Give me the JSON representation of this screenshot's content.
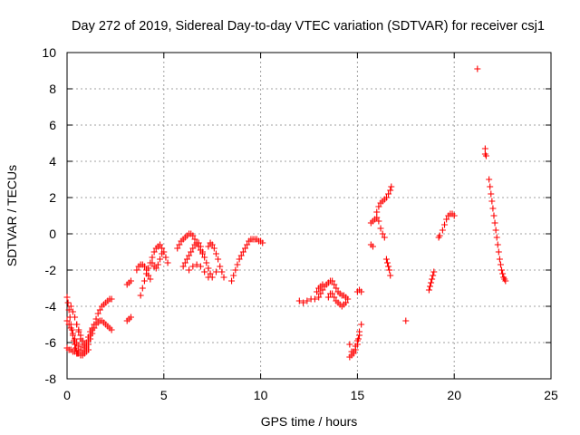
{
  "chart_data": {
    "type": "scatter",
    "title": "Day 272 of 2019, Sidereal Day-to-day VTEC variation (SDTVAR) for receiver csj1",
    "xlabel": "GPS time / hours",
    "ylabel": "SDTVAR / TECUs",
    "xlim": [
      0,
      25
    ],
    "ylim": [
      -8,
      10
    ],
    "x_ticks": [
      0,
      5,
      10,
      15,
      20,
      25
    ],
    "y_ticks": [
      -8,
      -6,
      -4,
      -2,
      0,
      2,
      4,
      6,
      8,
      10
    ],
    "grid": true,
    "marker": "+",
    "color": "#ff0000",
    "series": [
      {
        "name": "SDTVAR",
        "points": [
          [
            0.0,
            -3.5
          ],
          [
            0.05,
            -3.8
          ],
          [
            0.1,
            -4.2
          ],
          [
            0.15,
            -4.6
          ],
          [
            0.2,
            -5.0
          ],
          [
            0.25,
            -5.3
          ],
          [
            0.3,
            -5.6
          ],
          [
            0.35,
            -5.9
          ],
          [
            0.4,
            -6.1
          ],
          [
            0.45,
            -6.3
          ],
          [
            0.5,
            -6.5
          ],
          [
            0.55,
            -6.6
          ],
          [
            0.6,
            -6.6
          ],
          [
            0.7,
            -6.7
          ],
          [
            0.8,
            -6.7
          ],
          [
            0.9,
            -6.6
          ],
          [
            1.0,
            -6.5
          ],
          [
            1.1,
            -6.4
          ],
          [
            0.0,
            -4.8
          ],
          [
            0.1,
            -5.0
          ],
          [
            0.2,
            -5.2
          ],
          [
            0.3,
            -5.5
          ],
          [
            0.4,
            -5.8
          ],
          [
            0.5,
            -6.0
          ],
          [
            0.6,
            -6.2
          ],
          [
            0.7,
            -6.4
          ],
          [
            0.8,
            -6.6
          ],
          [
            0.9,
            -6.5
          ],
          [
            1.0,
            -6.2
          ],
          [
            1.1,
            -5.9
          ],
          [
            1.2,
            -5.6
          ],
          [
            1.3,
            -5.3
          ],
          [
            1.4,
            -5.0
          ],
          [
            1.5,
            -4.7
          ],
          [
            1.6,
            -4.4
          ],
          [
            1.7,
            -4.2
          ],
          [
            1.8,
            -4.0
          ],
          [
            1.9,
            -3.9
          ],
          [
            2.0,
            -3.8
          ],
          [
            2.1,
            -3.7
          ],
          [
            2.2,
            -3.6
          ],
          [
            2.3,
            -3.6
          ],
          [
            0.0,
            -6.3
          ],
          [
            0.1,
            -6.4
          ],
          [
            0.2,
            -6.4
          ],
          [
            0.3,
            -6.5
          ],
          [
            0.4,
            -6.5
          ],
          [
            0.5,
            -6.6
          ],
          [
            0.2,
            -4.0
          ],
          [
            0.3,
            -4.3
          ],
          [
            0.4,
            -4.6
          ],
          [
            0.5,
            -5.0
          ],
          [
            0.6,
            -5.4
          ],
          [
            0.7,
            -5.8
          ],
          [
            0.8,
            -6.1
          ],
          [
            0.9,
            -6.3
          ],
          [
            1.0,
            -6.3
          ],
          [
            1.1,
            -6.1
          ],
          [
            1.2,
            -5.8
          ],
          [
            1.3,
            -5.5
          ],
          [
            1.4,
            -5.2
          ],
          [
            1.5,
            -5.0
          ],
          [
            1.6,
            -4.9
          ],
          [
            1.7,
            -4.8
          ],
          [
            1.8,
            -4.8
          ],
          [
            1.9,
            -4.9
          ],
          [
            2.0,
            -5.0
          ],
          [
            2.1,
            -5.1
          ],
          [
            2.2,
            -5.2
          ],
          [
            2.3,
            -5.3
          ],
          [
            0.5,
            -5.0
          ],
          [
            0.6,
            -5.3
          ],
          [
            0.7,
            -5.6
          ],
          [
            0.8,
            -5.9
          ],
          [
            0.9,
            -6.1
          ],
          [
            1.0,
            -6.0
          ],
          [
            1.1,
            -5.7
          ],
          [
            1.2,
            -5.4
          ],
          [
            1.3,
            -5.2
          ],
          [
            1.4,
            -5.0
          ],
          [
            3.1,
            -4.8
          ],
          [
            3.2,
            -4.7
          ],
          [
            3.3,
            -4.6
          ],
          [
            3.1,
            -2.8
          ],
          [
            3.2,
            -2.7
          ],
          [
            3.3,
            -2.6
          ],
          [
            3.6,
            -2.0
          ],
          [
            3.7,
            -1.8
          ],
          [
            3.8,
            -1.7
          ],
          [
            3.9,
            -1.7
          ],
          [
            4.0,
            -1.8
          ],
          [
            4.1,
            -2.0
          ],
          [
            4.2,
            -2.3
          ],
          [
            4.3,
            -2.5
          ],
          [
            3.8,
            -3.4
          ],
          [
            3.9,
            -3.0
          ],
          [
            4.0,
            -2.6
          ],
          [
            4.1,
            -2.2
          ],
          [
            4.2,
            -1.9
          ],
          [
            4.3,
            -1.6
          ],
          [
            4.4,
            -1.3
          ],
          [
            4.5,
            -1.0
          ],
          [
            4.6,
            -0.8
          ],
          [
            4.7,
            -0.7
          ],
          [
            4.8,
            -0.6
          ],
          [
            4.9,
            -0.8
          ],
          [
            5.0,
            -1.0
          ],
          [
            5.1,
            -1.3
          ],
          [
            5.2,
            -1.6
          ],
          [
            4.4,
            -1.6
          ],
          [
            4.5,
            -1.8
          ],
          [
            4.6,
            -1.9
          ],
          [
            4.7,
            -1.7
          ],
          [
            4.8,
            -1.4
          ],
          [
            4.9,
            -1.1
          ],
          [
            5.7,
            -0.8
          ],
          [
            5.8,
            -0.6
          ],
          [
            5.9,
            -0.4
          ],
          [
            6.0,
            -0.3
          ],
          [
            6.1,
            -0.2
          ],
          [
            6.2,
            -0.1
          ],
          [
            6.3,
            0.0
          ],
          [
            6.4,
            0.0
          ],
          [
            6.5,
            -0.1
          ],
          [
            6.6,
            -0.3
          ],
          [
            6.7,
            -0.5
          ],
          [
            6.8,
            -0.7
          ],
          [
            6.9,
            -0.9
          ],
          [
            7.0,
            -1.1
          ],
          [
            6.0,
            -1.8
          ],
          [
            6.1,
            -1.6
          ],
          [
            6.2,
            -1.4
          ],
          [
            6.3,
            -1.2
          ],
          [
            6.4,
            -1.0
          ],
          [
            6.5,
            -0.8
          ],
          [
            6.6,
            -0.6
          ],
          [
            6.7,
            -0.5
          ],
          [
            6.8,
            -0.5
          ],
          [
            6.9,
            -0.7
          ],
          [
            7.0,
            -1.0
          ],
          [
            7.1,
            -1.3
          ],
          [
            7.2,
            -1.6
          ],
          [
            7.3,
            -1.9
          ],
          [
            7.4,
            -2.2
          ],
          [
            6.3,
            -2.0
          ],
          [
            6.5,
            -1.8
          ],
          [
            6.7,
            -1.7
          ],
          [
            6.9,
            -1.8
          ],
          [
            7.1,
            -2.1
          ],
          [
            7.3,
            -2.4
          ],
          [
            7.5,
            -2.4
          ],
          [
            7.7,
            -2.1
          ],
          [
            7.3,
            -0.7
          ],
          [
            7.4,
            -0.5
          ],
          [
            7.5,
            -0.6
          ],
          [
            7.6,
            -0.8
          ],
          [
            7.7,
            -1.1
          ],
          [
            7.8,
            -1.4
          ],
          [
            7.9,
            -1.8
          ],
          [
            8.0,
            -2.1
          ],
          [
            8.1,
            -2.4
          ],
          [
            8.5,
            -2.6
          ],
          [
            8.6,
            -2.3
          ],
          [
            8.7,
            -2.0
          ],
          [
            8.8,
            -1.7
          ],
          [
            8.9,
            -1.4
          ],
          [
            9.0,
            -1.2
          ],
          [
            9.1,
            -1.0
          ],
          [
            9.2,
            -0.8
          ],
          [
            9.3,
            -0.6
          ],
          [
            9.4,
            -0.4
          ],
          [
            9.5,
            -0.3
          ],
          [
            9.6,
            -0.3
          ],
          [
            9.7,
            -0.3
          ],
          [
            9.8,
            -0.3
          ],
          [
            9.9,
            -0.4
          ],
          [
            10.0,
            -0.4
          ],
          [
            10.1,
            -0.5
          ],
          [
            12.0,
            -3.7
          ],
          [
            12.2,
            -3.8
          ],
          [
            12.4,
            -3.7
          ],
          [
            12.6,
            -3.6
          ],
          [
            12.8,
            -3.6
          ],
          [
            13.0,
            -3.5
          ],
          [
            13.1,
            -3.3
          ],
          [
            13.2,
            -3.1
          ],
          [
            13.3,
            -2.9
          ],
          [
            13.4,
            -2.8
          ],
          [
            13.5,
            -2.7
          ],
          [
            13.6,
            -2.6
          ],
          [
            13.7,
            -2.6
          ],
          [
            13.8,
            -2.8
          ],
          [
            13.9,
            -3.0
          ],
          [
            14.0,
            -3.2
          ],
          [
            14.1,
            -3.3
          ],
          [
            14.2,
            -3.4
          ],
          [
            14.3,
            -3.4
          ],
          [
            14.4,
            -3.5
          ],
          [
            12.9,
            -3.2
          ],
          [
            13.0,
            -3.0
          ],
          [
            13.1,
            -2.9
          ],
          [
            13.2,
            -2.8
          ],
          [
            13.5,
            -3.5
          ],
          [
            13.6,
            -3.3
          ],
          [
            13.7,
            -3.3
          ],
          [
            13.8,
            -3.5
          ],
          [
            13.9,
            -3.7
          ],
          [
            14.0,
            -3.8
          ],
          [
            14.1,
            -3.9
          ],
          [
            14.2,
            -4.0
          ],
          [
            14.3,
            -3.9
          ],
          [
            14.4,
            -3.8
          ],
          [
            14.5,
            -3.6
          ],
          [
            14.6,
            -6.1
          ],
          [
            14.7,
            -6.5
          ],
          [
            14.8,
            -6.6
          ],
          [
            14.9,
            -6.4
          ],
          [
            15.0,
            -6.1
          ],
          [
            15.05,
            -5.8
          ],
          [
            15.1,
            -5.4
          ],
          [
            15.2,
            -5.0
          ],
          [
            14.6,
            -6.8
          ],
          [
            14.7,
            -6.7
          ],
          [
            14.8,
            -6.5
          ],
          [
            14.9,
            -6.2
          ],
          [
            15.0,
            -5.9
          ],
          [
            15.1,
            -5.6
          ],
          [
            15.0,
            -3.2
          ],
          [
            15.1,
            -3.1
          ],
          [
            15.2,
            -3.2
          ],
          [
            15.7,
            0.6
          ],
          [
            15.8,
            0.7
          ],
          [
            15.9,
            0.8
          ],
          [
            16.0,
            0.9
          ],
          [
            16.1,
            0.7
          ],
          [
            16.2,
            0.3
          ],
          [
            16.3,
            0.0
          ],
          [
            16.4,
            -0.2
          ],
          [
            15.7,
            -0.6
          ],
          [
            15.8,
            -0.7
          ],
          [
            16.0,
            1.2
          ],
          [
            16.1,
            1.5
          ],
          [
            16.2,
            1.7
          ],
          [
            16.3,
            1.8
          ],
          [
            16.4,
            1.9
          ],
          [
            16.5,
            2.0
          ],
          [
            16.6,
            2.2
          ],
          [
            16.7,
            2.4
          ],
          [
            16.75,
            2.6
          ],
          [
            16.5,
            -1.4
          ],
          [
            16.55,
            -1.6
          ],
          [
            16.6,
            -1.8
          ],
          [
            16.65,
            -2.0
          ],
          [
            16.7,
            -2.3
          ],
          [
            17.5,
            -4.8
          ],
          [
            18.7,
            -3.1
          ],
          [
            18.75,
            -2.9
          ],
          [
            18.8,
            -2.7
          ],
          [
            18.85,
            -2.5
          ],
          [
            18.9,
            -2.3
          ],
          [
            18.95,
            -2.1
          ],
          [
            19.2,
            -0.2
          ],
          [
            19.25,
            -0.1
          ],
          [
            19.4,
            0.2
          ],
          [
            19.5,
            0.5
          ],
          [
            19.6,
            0.8
          ],
          [
            19.7,
            1.0
          ],
          [
            19.8,
            1.1
          ],
          [
            19.9,
            1.1
          ],
          [
            20.0,
            1.0
          ],
          [
            21.2,
            9.1
          ],
          [
            21.6,
            4.4
          ],
          [
            21.6,
            4.7
          ],
          [
            21.65,
            4.3
          ],
          [
            21.8,
            3.0
          ],
          [
            21.85,
            2.6
          ],
          [
            21.9,
            2.2
          ],
          [
            21.95,
            1.8
          ],
          [
            22.0,
            1.4
          ],
          [
            22.05,
            1.0
          ],
          [
            22.1,
            0.6
          ],
          [
            22.15,
            0.2
          ],
          [
            22.2,
            -0.2
          ],
          [
            22.25,
            -0.6
          ],
          [
            22.3,
            -1.0
          ],
          [
            22.35,
            -1.4
          ],
          [
            22.4,
            -1.7
          ],
          [
            22.45,
            -2.0
          ],
          [
            22.5,
            -2.2
          ],
          [
            22.55,
            -2.4
          ],
          [
            22.6,
            -2.5
          ],
          [
            22.65,
            -2.6
          ]
        ]
      }
    ]
  }
}
